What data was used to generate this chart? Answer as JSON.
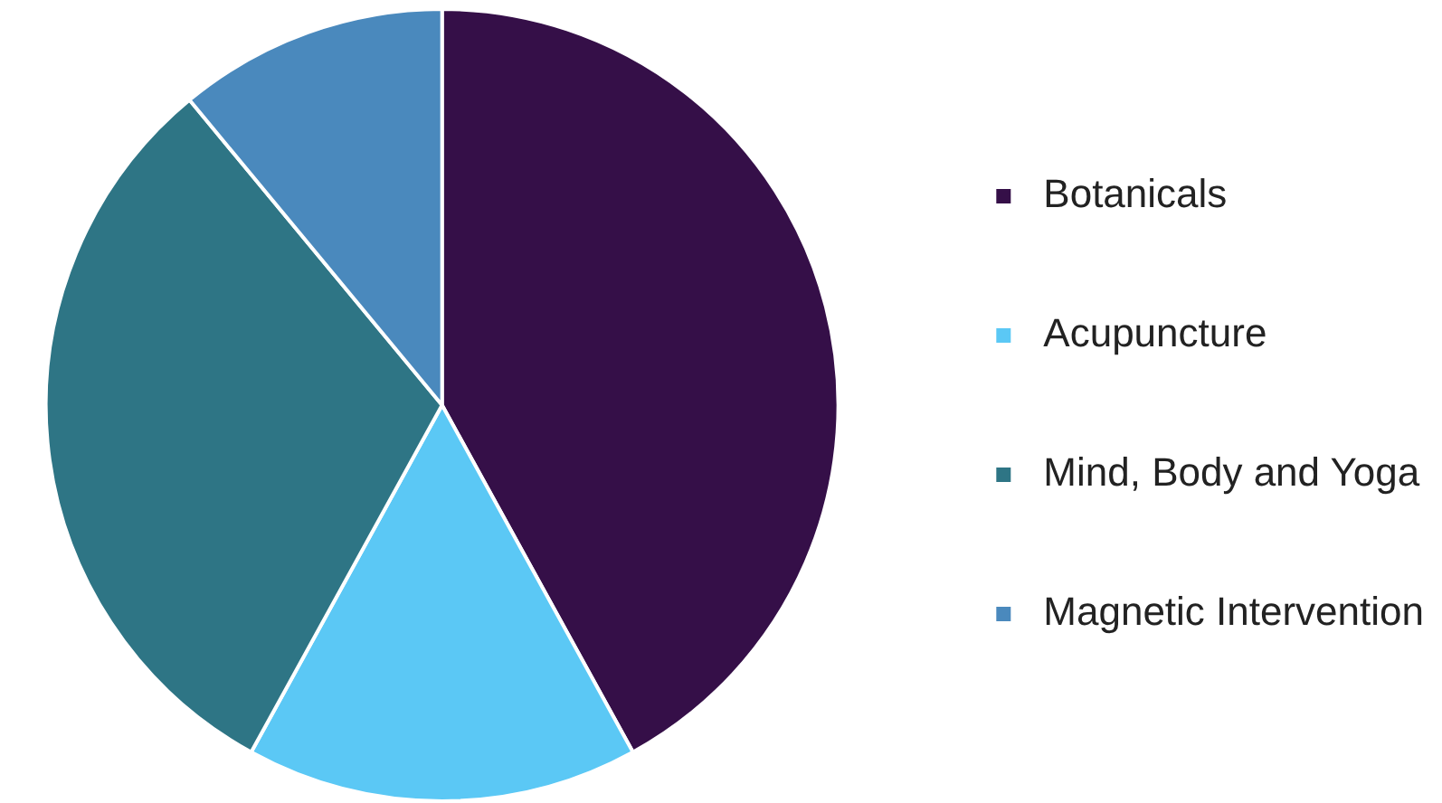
{
  "chart_data": {
    "type": "pie",
    "categories": [
      "Botanicals",
      "Acupuncture",
      "Mind, Body and Yoga",
      "Magnetic Intervention"
    ],
    "values": [
      42,
      16,
      31,
      11
    ],
    "colors": [
      "#350f48",
      "#5bc8f5",
      "#2e7585",
      "#4a89bd"
    ],
    "legend": "right"
  }
}
